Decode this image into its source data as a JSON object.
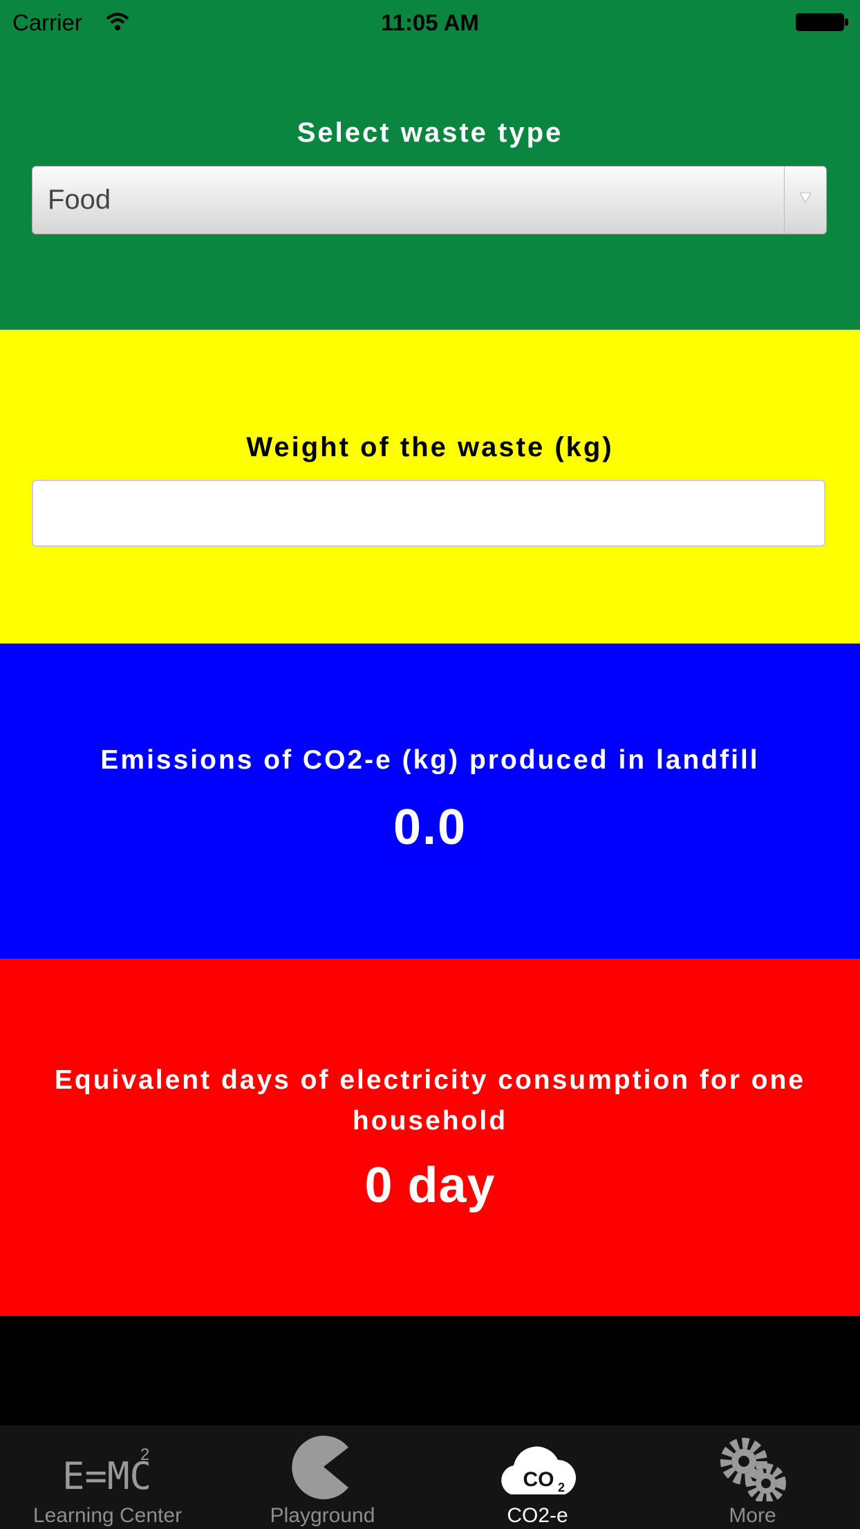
{
  "status_bar": {
    "carrier": "Carrier",
    "time": "11:05 AM"
  },
  "waste_type": {
    "label": "Select waste type",
    "selected": "Food"
  },
  "weight": {
    "label": "Weight of the waste (kg)"
  },
  "emissions": {
    "label": "Emissions of CO2-e (kg) produced in landfill",
    "value": "0.0"
  },
  "equivalent": {
    "label": "Equivalent days of electricity consumption for one household",
    "value": "0 day"
  },
  "tabs": [
    "Learning Center",
    "Playground",
    "CO2-e",
    "More"
  ]
}
